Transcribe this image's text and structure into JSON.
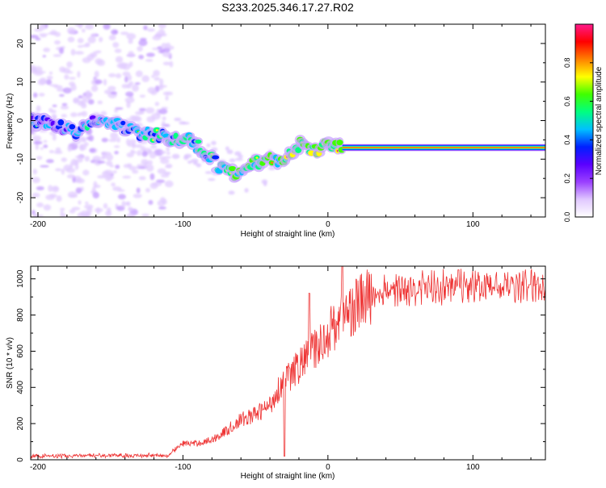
{
  "title": "S233.2025.346.17.27.R02",
  "chart_data": [
    {
      "type": "heatmap",
      "name": "spectrogram",
      "xlabel": "Height of straight line (km)",
      "ylabel": "Frequency (Hz)",
      "xlim": [
        -205,
        150
      ],
      "ylim": [
        -25,
        25
      ],
      "x_ticks": [
        -200,
        -100,
        0,
        100
      ],
      "y_ticks": [
        -20,
        -10,
        0,
        10,
        20
      ],
      "colorbar": {
        "label": "Normalized spectral amplitude",
        "range": [
          0,
          1
        ],
        "ticks": [
          0.0,
          0.2,
          0.4,
          0.6,
          0.8
        ],
        "colors": [
          "#ffffff",
          "#e0c8ff",
          "#9a40ff",
          "#5a00ff",
          "#0020ff",
          "#00c0ff",
          "#00ff80",
          "#40ff00",
          "#ffff00",
          "#ff8000",
          "#ff0000",
          "#ff1a8c"
        ]
      },
      "carrier_line": {
        "x_start": 10,
        "x_end": 150,
        "frequency": -7
      },
      "ridge": {
        "x": [
          -205,
          -190,
          -175,
          -160,
          -145,
          -130,
          -115,
          -105,
          -95,
          -85,
          -75,
          -65,
          -55,
          -50,
          -45,
          -40,
          -35,
          -30,
          -25,
          -20,
          -15,
          -10,
          -5,
          0,
          5,
          10
        ],
        "freq": [
          0,
          -1,
          -3,
          0,
          -1,
          -3,
          -4,
          -5,
          -5,
          -8,
          -12,
          -14,
          -13,
          -10,
          -11,
          -10,
          -11,
          -10,
          -8,
          -6,
          -6,
          -8,
          -7,
          -6,
          -6,
          -7
        ]
      }
    },
    {
      "type": "line",
      "name": "snr",
      "xlabel": "Height of straight line (km)",
      "ylabel": "SNR (10 * v/v)",
      "xlim": [
        -205,
        150
      ],
      "ylim": [
        0,
        1070
      ],
      "x_ticks": [
        -200,
        -100,
        0,
        100
      ],
      "y_ticks": [
        0,
        200,
        400,
        600,
        800,
        1000
      ],
      "line_color": "#ee3333",
      "envelope": {
        "x": [
          -205,
          -110,
          -100,
          -90,
          -80,
          -70,
          -60,
          -50,
          -40,
          -35,
          -30,
          -25,
          -20,
          -15,
          -10,
          -5,
          0,
          5,
          10,
          15,
          20,
          25,
          30,
          40,
          60,
          100,
          150
        ],
        "y": [
          20,
          25,
          90,
          90,
          110,
          160,
          220,
          250,
          300,
          380,
          440,
          470,
          520,
          560,
          600,
          640,
          700,
          750,
          780,
          820,
          860,
          880,
          900,
          930,
          950,
          960,
          960
        ]
      },
      "noise_amplitude": 0.12,
      "spikes": [
        {
          "x": -13,
          "y": 920
        },
        {
          "x": 10,
          "y": 1070
        },
        {
          "x": -30,
          "y": 20
        },
        {
          "x": 90,
          "y": 1050
        }
      ]
    }
  ]
}
